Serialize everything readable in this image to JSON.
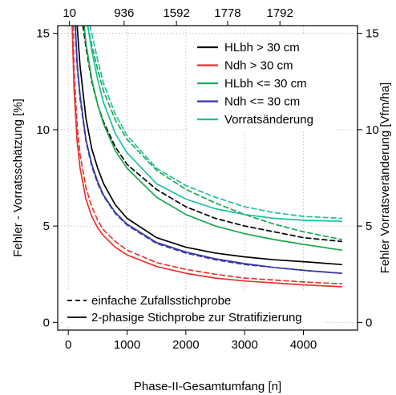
{
  "chart_data": {
    "type": "line",
    "x_label": "Phase-II-Gesamtumfang [n]",
    "y_left_label": "Fehler - Vorratsschätzung [%]",
    "y_right_label": "Fehler Vorratsveränderung [Vfm/ha]",
    "x_range": [
      -180,
      4920
    ],
    "y_range": [
      -0.4,
      15.4
    ],
    "x_ticks": [
      0,
      1000,
      2000,
      3000,
      4000
    ],
    "y_ticks": [
      0,
      5,
      10,
      15
    ],
    "top_ticks": [
      {
        "x": 20,
        "label": "10"
      },
      {
        "x": 950,
        "label": "936"
      },
      {
        "x": 1840,
        "label": "1592"
      },
      {
        "x": 2710,
        "label": "1778"
      },
      {
        "x": 3600,
        "label": "1792"
      }
    ],
    "grid": true,
    "legend_top": {
      "position": "top-right",
      "entries": [
        {
          "label": "HLbh > 30 cm",
          "color": "#000000"
        },
        {
          "label": "Ndh > 30 cm",
          "color": "#e8342e"
        },
        {
          "label": "HLbh <= 30 cm",
          "color": "#1aa84a"
        },
        {
          "label": "Ndh <= 30 cm",
          "color": "#3a3aa6"
        },
        {
          "label": "Vorratsänderung",
          "color": "#1fbfa0"
        }
      ]
    },
    "legend_bottom": {
      "position": "bottom-left",
      "entries": [
        {
          "label": "einfache Zufallsstichprobe",
          "style": "dashed"
        },
        {
          "label": "2-phasige Stichprobe zur Stratifizierung",
          "style": "solid"
        }
      ]
    },
    "series": [
      {
        "name": "HLbh > 30 cm",
        "style": "solid",
        "color": "#000000",
        "x": [
          150,
          200,
          300,
          400,
          500,
          600,
          800,
          1000,
          1500,
          2000,
          2500,
          3000,
          3500,
          4000,
          4650
        ],
        "y": [
          15.4,
          13.3,
          10.6,
          9.0,
          8.0,
          7.2,
          6.1,
          5.4,
          4.4,
          3.9,
          3.6,
          3.4,
          3.25,
          3.15,
          3.0
        ]
      },
      {
        "name": "HLbh > 30 cm",
        "style": "dashed",
        "color": "#000000",
        "x": [
          250,
          300,
          400,
          500,
          600,
          800,
          1000,
          1500,
          2000,
          2500,
          3000,
          3500,
          4000,
          4650
        ],
        "y": [
          15.4,
          14.3,
          12.5,
          11.3,
          10.4,
          9.1,
          8.2,
          6.9,
          6.0,
          5.4,
          5.0,
          4.7,
          4.4,
          4.2
        ]
      },
      {
        "name": "Ndh > 30 cm",
        "style": "solid",
        "color": "#e8342e",
        "x": [
          65,
          100,
          150,
          200,
          300,
          400,
          500,
          600,
          800,
          1000,
          1500,
          2000,
          2500,
          3000,
          3500,
          4000,
          4650
        ],
        "y": [
          15.4,
          12.0,
          9.4,
          8.0,
          6.4,
          5.5,
          4.9,
          4.5,
          3.9,
          3.5,
          2.9,
          2.55,
          2.3,
          2.15,
          2.05,
          1.95,
          1.85
        ]
      },
      {
        "name": "Ndh > 30 cm",
        "style": "dashed",
        "color": "#e8342e",
        "x": [
          80,
          100,
          150,
          200,
          300,
          400,
          500,
          600,
          800,
          1000,
          1500,
          2000,
          2500,
          3000,
          3500,
          4000,
          4650
        ],
        "y": [
          15.4,
          13.0,
          10.2,
          8.7,
          7.0,
          6.0,
          5.3,
          4.8,
          4.2,
          3.75,
          3.1,
          2.75,
          2.5,
          2.3,
          2.2,
          2.1,
          2.0
        ]
      },
      {
        "name": "HLbh <= 30 cm",
        "style": "solid",
        "color": "#1aa84a",
        "x": [
          270,
          300,
          400,
          500,
          600,
          800,
          1000,
          1500,
          2000,
          2500,
          3000,
          3500,
          4000,
          4650
        ],
        "y": [
          15.4,
          14.5,
          12.6,
          11.3,
          10.3,
          8.9,
          8.0,
          6.5,
          5.6,
          5.0,
          4.6,
          4.3,
          4.05,
          3.75
        ]
      },
      {
        "name": "HLbh <= 30 cm",
        "style": "dashed",
        "color": "#1aa84a",
        "x": [
          330,
          400,
          500,
          600,
          800,
          1000,
          1500,
          2000,
          2500,
          3000,
          3500,
          4000,
          4650
        ],
        "y": [
          15.4,
          14.4,
          13.1,
          12.0,
          10.5,
          9.5,
          7.9,
          6.9,
          6.2,
          5.6,
          5.1,
          4.7,
          4.3
        ]
      },
      {
        "name": "Ndh <= 30 cm",
        "style": "solid",
        "color": "#3a3aa6",
        "x": [
          120,
          150,
          200,
          300,
          400,
          500,
          600,
          800,
          1000,
          1500,
          2000,
          2500,
          3000,
          3500,
          4000,
          4650
        ],
        "y": [
          15.4,
          13.5,
          11.8,
          9.5,
          8.2,
          7.3,
          6.6,
          5.7,
          5.1,
          4.15,
          3.65,
          3.3,
          3.05,
          2.85,
          2.7,
          2.55
        ]
      },
      {
        "name": "Ndh <= 30 cm",
        "style": "dashed",
        "color": "#3a3aa6",
        "x": [
          115,
          150,
          200,
          300,
          400,
          500,
          600,
          800,
          1000,
          1500,
          2000,
          2500,
          3000,
          3500,
          4000,
          4650
        ],
        "y": [
          15.4,
          13.3,
          11.6,
          9.4,
          8.1,
          7.2,
          6.55,
          5.65,
          5.05,
          4.1,
          3.6,
          3.25,
          3.0,
          2.85,
          2.7,
          2.55
        ]
      },
      {
        "name": "Vorratsänderung",
        "style": "solid",
        "color": "#1fbfa0",
        "x": [
          330,
          400,
          500,
          600,
          800,
          1000,
          1500,
          2000,
          2500,
          3000,
          3500,
          4000,
          4650
        ],
        "y": [
          15.4,
          14.1,
          12.6,
          11.4,
          9.8,
          8.8,
          7.2,
          6.4,
          5.9,
          5.6,
          5.4,
          5.3,
          5.25
        ]
      },
      {
        "name": "Vorratsänderung",
        "style": "dashed",
        "color": "#1fbfa0",
        "x": [
          370,
          400,
          500,
          600,
          800,
          1000,
          1500,
          2000,
          2500,
          3000,
          3500,
          4000,
          4650
        ],
        "y": [
          15.4,
          15.0,
          13.6,
          12.4,
          10.8,
          9.7,
          8.0,
          7.1,
          6.5,
          6.0,
          5.7,
          5.5,
          5.4
        ]
      }
    ]
  }
}
